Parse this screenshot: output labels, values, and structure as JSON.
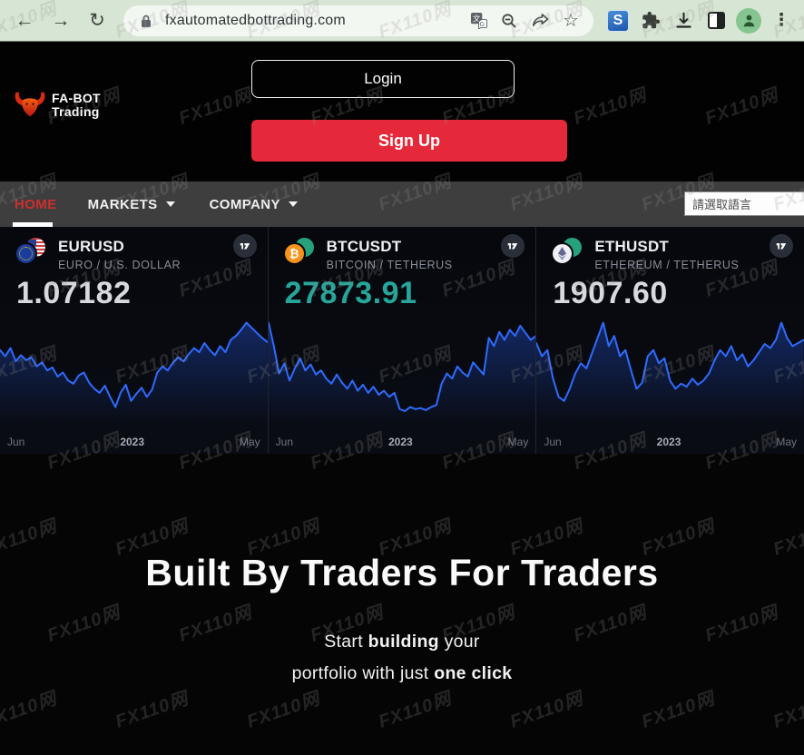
{
  "browser": {
    "url": "fxautomatedbottrading.com",
    "back_glyph": "←",
    "forward_glyph": "→",
    "reload_glyph": "↻",
    "star_glyph": "☆",
    "s_extension_label": "S",
    "kebab_glyph": "⋮"
  },
  "site": {
    "logo": {
      "line1": "FA-BOT",
      "line2": "Trading"
    },
    "login_label": "Login",
    "signup_label": "Sign Up",
    "nav": {
      "home": "HOME",
      "markets": "MARKETS",
      "company": "COMPANY",
      "language_placeholder": "請選取語言"
    },
    "headline": "Built By Traders For Traders",
    "subtitle_lines": [
      [
        {
          "t": "Start "
        },
        {
          "t": "building",
          "b": true
        },
        {
          "t": " your"
        }
      ],
      [
        {
          "t": "portfolio with just "
        },
        {
          "t": "one click",
          "b": true
        }
      ]
    ]
  },
  "widgets": [
    {
      "symbol": "EURUSD",
      "name": "EURO / U.S. DOLLAR",
      "price": "1.07182",
      "price_color": "#d6d9de",
      "btc_glyph": ""
    },
    {
      "symbol": "BTCUSDT",
      "name": "BITCOIN / TETHERUS",
      "price": "27873.91",
      "price_color": "#26a69a",
      "btc_glyph": "₿"
    },
    {
      "symbol": "ETHUSDT",
      "name": "ETHEREUM / TETHERUS",
      "price": "1907.60",
      "price_color": "#d6d9de",
      "btc_glyph": ""
    }
  ],
  "chart_data": [
    {
      "type": "line",
      "title": "EURUSD 1Y sparkline",
      "x_tick_labels": [
        "Jun",
        "2023",
        "May"
      ],
      "line_color": "#2962ff",
      "grid": false,
      "y_axis_visible": false,
      "series": [
        {
          "name": "EURUSD",
          "values": [
            68,
            62,
            70,
            57,
            63,
            58,
            61,
            52,
            56,
            48,
            51,
            42,
            46,
            38,
            35,
            43,
            46,
            36,
            30,
            26,
            33,
            22,
            12,
            26,
            34,
            18,
            25,
            31,
            22,
            29,
            46,
            52,
            48,
            56,
            61,
            57,
            64,
            70,
            66,
            75,
            68,
            63,
            72,
            66,
            78,
            82,
            88,
            95,
            90,
            85,
            80,
            76
          ]
        }
      ]
    },
    {
      "type": "line",
      "title": "BTCUSDT 1Y sparkline",
      "x_tick_labels": [
        "Jun",
        "2023",
        "May"
      ],
      "line_color": "#2962ff",
      "grid": false,
      "y_axis_visible": false,
      "series": [
        {
          "name": "BTCUSDT",
          "values": [
            95,
            72,
            45,
            55,
            38,
            50,
            60,
            48,
            54,
            44,
            48,
            40,
            35,
            44,
            36,
            30,
            38,
            28,
            34,
            26,
            32,
            24,
            28,
            22,
            26,
            10,
            8,
            12,
            10,
            11,
            9,
            12,
            14,
            35,
            45,
            40,
            52,
            46,
            42,
            56,
            50,
            44,
            80,
            72,
            86,
            78,
            88,
            82,
            92,
            85,
            78,
            82
          ]
        }
      ]
    },
    {
      "type": "line",
      "title": "ETHUSDT 1Y sparkline",
      "x_tick_labels": [
        "Jun",
        "2023",
        "May"
      ],
      "line_color": "#2962ff",
      "grid": false,
      "y_axis_visible": false,
      "series": [
        {
          "name": "ETHUSDT",
          "values": [
            75,
            62,
            68,
            40,
            22,
            18,
            30,
            45,
            55,
            50,
            65,
            80,
            95,
            72,
            82,
            62,
            68,
            48,
            30,
            36,
            62,
            68,
            55,
            60,
            38,
            30,
            35,
            32,
            40,
            34,
            38,
            45,
            58,
            68,
            62,
            72,
            58,
            64,
            52,
            58,
            66,
            74,
            70,
            78,
            95,
            80,
            72,
            75,
            78
          ]
        }
      ]
    }
  ],
  "watermark": {
    "text": "FX110网"
  },
  "colors": {
    "accent_red": "#e5293a",
    "chart_blue": "#2962ff",
    "price_up_teal": "#26a69a",
    "nav_bg": "#3e3e3e",
    "toolbar_green": "#d7e5d4"
  }
}
